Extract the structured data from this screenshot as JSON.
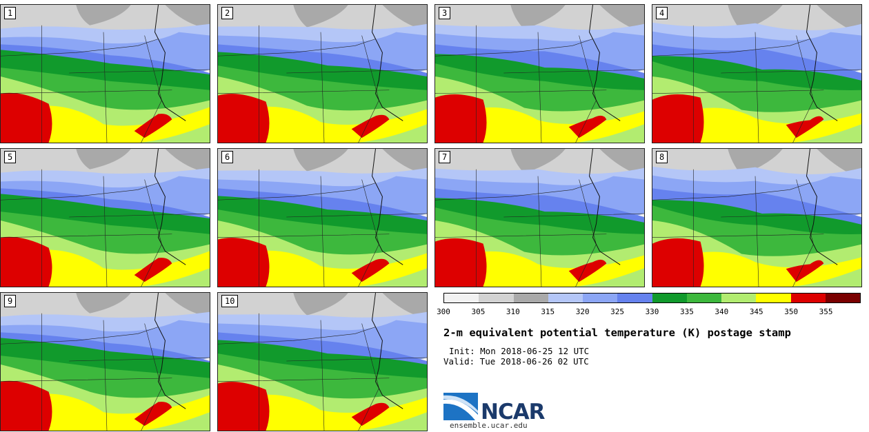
{
  "panels": [
    {
      "label": "1"
    },
    {
      "label": "2"
    },
    {
      "label": "3"
    },
    {
      "label": "4"
    },
    {
      "label": "5"
    },
    {
      "label": "6"
    },
    {
      "label": "7"
    },
    {
      "label": "8"
    },
    {
      "label": "9"
    },
    {
      "label": "10"
    }
  ],
  "colorbar": {
    "colors": [
      "#f2f2f2",
      "#d2d2d2",
      "#a9a9a9",
      "#b4c6f7",
      "#8ca6f5",
      "#6682ee",
      "#119a2c",
      "#3db83d",
      "#b2ec70",
      "#ffff00",
      "#dd0000",
      "#7a0000"
    ],
    "ticks": [
      "300",
      "305",
      "310",
      "315",
      "320",
      "325",
      "330",
      "335",
      "340",
      "345",
      "350",
      "355"
    ]
  },
  "title": "2-m equivalent potential temperature (K) postage stamp",
  "init": "Init: Mon 2018-06-25 12 UTC",
  "valid": "Valid: Tue 2018-06-26 02 UTC",
  "logo": {
    "text": "NCAR",
    "url": "ensemble.ucar.edu"
  }
}
